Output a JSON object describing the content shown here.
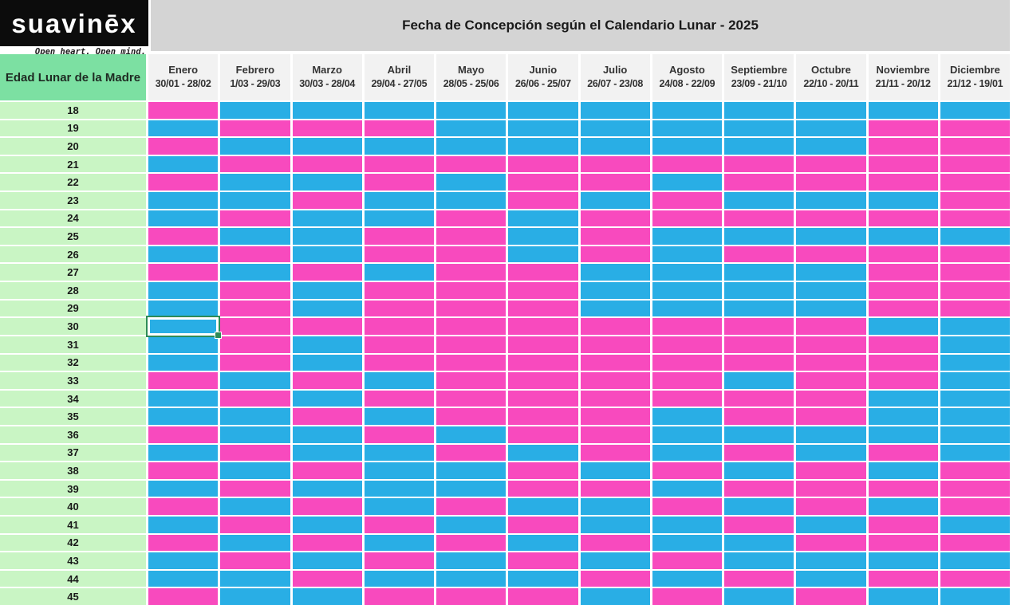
{
  "brand": {
    "logo": "suavinēx",
    "tagline": "Open heart. Open mind."
  },
  "colors": {
    "girl_pink": "#f84abe",
    "boy_blue": "#29aee5",
    "corner_green": "#7ce0a2",
    "age_green": "#c9f5c4",
    "title_bg": "#d4d4d4",
    "month_bg": "#f2f2f2",
    "selection_green": "#2e8b57"
  },
  "chart_data": {
    "type": "heatmap",
    "title": "Fecha de Concepción según el Calendario Lunar - 2025",
    "row_axis_label": "Edad Lunar de la Madre",
    "columns": [
      {
        "name": "Enero",
        "range": "30/01 - 28/02"
      },
      {
        "name": "Febrero",
        "range": "1/03 - 29/03"
      },
      {
        "name": "Marzo",
        "range": "30/03 - 28/04"
      },
      {
        "name": "Abril",
        "range": "29/04 - 27/05"
      },
      {
        "name": "Mayo",
        "range": "28/05 - 25/06"
      },
      {
        "name": "Junio",
        "range": "26/06 - 25/07"
      },
      {
        "name": "Julio",
        "range": "26/07 - 23/08"
      },
      {
        "name": "Agosto",
        "range": "24/08 - 22/09"
      },
      {
        "name": "Septiembre",
        "range": "23/09 - 21/10"
      },
      {
        "name": "Octubre",
        "range": "22/10 - 20/11"
      },
      {
        "name": "Noviembre",
        "range": "21/11 - 20/12"
      },
      {
        "name": "Diciembre",
        "range": "21/12 - 19/01"
      }
    ],
    "row_labels": [
      18,
      19,
      20,
      21,
      22,
      23,
      24,
      25,
      26,
      27,
      28,
      29,
      30,
      31,
      32,
      33,
      34,
      35,
      36,
      37,
      38,
      39,
      40,
      41,
      42,
      43,
      44,
      45
    ],
    "cell_legend": {
      "P": "pink cell (#f84abe)",
      "B": "blue cell (#29aee5)"
    },
    "cells": [
      "PBBBBBBBBBBB",
      "BPPPBBBBBBPP",
      "PBBBBBBBBBPP",
      "BPPPPPPPPPPP",
      "PBBPBPPBPPPP",
      "BBPBBPBPBBBP",
      "BPBBPBPPPPPP",
      "PBBPPBPBBBBB",
      "BPBPPBPBPPPP",
      "PBPBPPBBBBPP",
      "BPBPPPBBBBPP",
      "BPBPPPBBBBPP",
      "BPPPPPPPPPBB",
      "BPBPPPPPPPPB",
      "BPBPPPPPPPPB",
      "PBPBPPPPBPPB",
      "BPBPPPPPPPBB",
      "BBPBPPPBPPBB",
      "PBBPBPPBBBBB",
      "BPBBPBPBPBPB",
      "PBPBBPBPBPBP",
      "BPBBBPPBPPPP",
      "PBPBPBBPBPBP",
      "BPBPBPBBPBPB",
      "PBPBPBPBBPPP",
      "BPBPBPBPBBBB",
      "BBPBBBPBPBPP",
      "PBBPPPBPBPBB"
    ],
    "selected_cell": {
      "row_label": 30,
      "column": "Enero"
    }
  }
}
